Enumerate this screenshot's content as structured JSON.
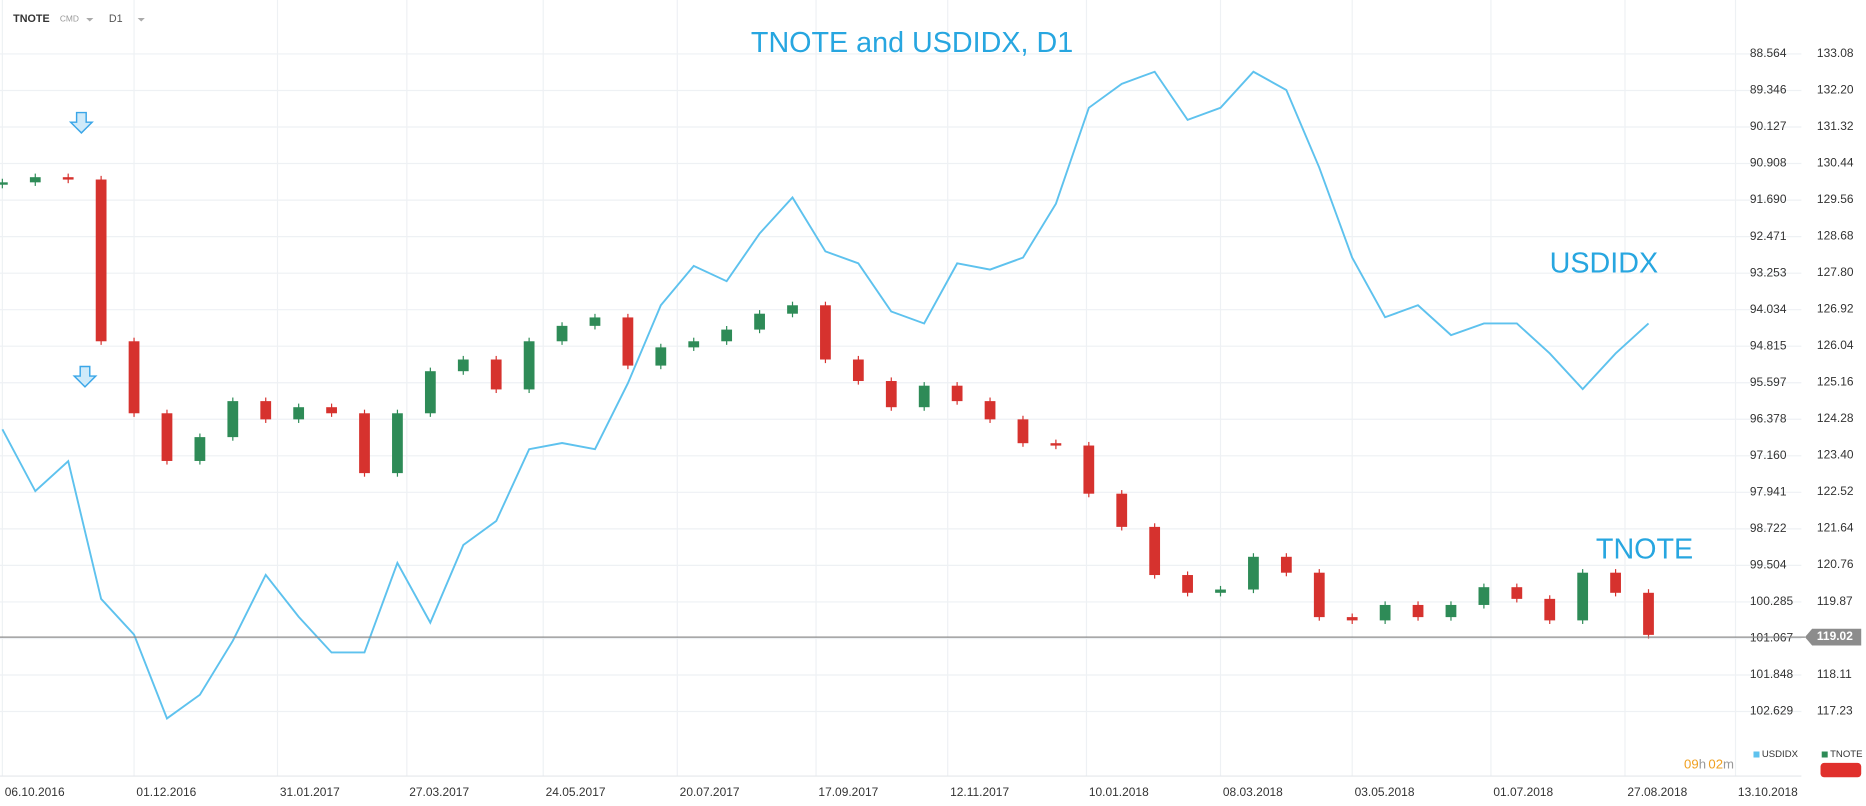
{
  "toolbar": {
    "symbol": "TNOTE",
    "market": "CMD",
    "timeframe": "D1"
  },
  "chart_data": {
    "type": "candlestick",
    "title": "TNOTE and USDIDX, D1",
    "annotations": [
      "USDIDX",
      "TNOTE"
    ],
    "grid": true,
    "x": [
      "06.10.2016",
      "20.10.2016",
      "03.11.2016",
      "17.11.2016",
      "01.12.2016",
      "15.12.2016",
      "29.12.2016",
      "12.01.2017",
      "26.01.2017",
      "09.02.2017",
      "23.02.2017",
      "09.03.2017",
      "23.03.2017",
      "06.04.2017",
      "20.04.2017",
      "04.05.2017",
      "18.05.2017",
      "01.06.2017",
      "15.06.2017",
      "29.06.2017",
      "13.07.2017",
      "27.07.2017",
      "10.08.2017",
      "24.08.2017",
      "07.09.2017",
      "21.09.2017",
      "05.10.2017",
      "19.10.2017",
      "02.11.2017",
      "16.11.2017",
      "30.11.2017",
      "14.12.2017",
      "28.12.2017",
      "11.01.2018",
      "25.01.2018",
      "08.02.2018",
      "22.02.2018",
      "08.03.2018",
      "22.03.2018",
      "05.04.2018",
      "19.04.2018",
      "03.05.2018",
      "17.05.2018",
      "31.05.2018",
      "14.06.2018",
      "28.06.2018",
      "12.07.2018",
      "26.07.2018",
      "09.08.2018",
      "23.08.2018",
      "06.09.2018"
    ],
    "series": [
      {
        "name": "TNOTE",
        "type": "candlestick",
        "color": "#2e8b57",
        "falling_color": "#d6322e",
        "values": [
          91.31,
          91.2,
          91.25,
          94.71,
          96.25,
          97.27,
          96.76,
          95.99,
          96.38,
          96.12,
          96.25,
          97.53,
          96.25,
          95.35,
          95.1,
          95.74,
          94.71,
          94.38,
          94.2,
          95.23,
          94.84,
          94.71,
          94.46,
          94.12,
          93.94,
          95.1,
          95.56,
          96.12,
          95.66,
          95.99,
          96.38,
          96.89,
          96.94,
          97.97,
          98.68,
          99.71,
          100.09,
          100.02,
          99.32,
          99.66,
          100.61,
          100.68,
          100.35,
          100.61,
          100.35,
          99.97,
          100.22,
          100.68,
          99.66,
          100.09,
          100.99
        ]
      },
      {
        "name": "USDIDX",
        "type": "line",
        "axis": "y2",
        "color": "#5ec2ee",
        "values": [
          124.03,
          122.54,
          123.26,
          119.94,
          119.08,
          117.06,
          117.63,
          118.93,
          120.52,
          119.51,
          118.65,
          118.65,
          120.81,
          119.37,
          121.24,
          121.82,
          123.55,
          123.7,
          123.55,
          125.14,
          127.02,
          127.97,
          127.6,
          128.75,
          129.62,
          128.32,
          128.03,
          126.87,
          126.58,
          128.03,
          127.88,
          128.17,
          129.47,
          131.78,
          132.36,
          132.65,
          131.49,
          131.78,
          132.65,
          132.21,
          130.34,
          128.17,
          126.73,
          127.02,
          126.3,
          126.58,
          126.58,
          125.86,
          125,
          125.86,
          126.58
        ]
      }
    ],
    "xlim": [
      "05.10.2016",
      "10.11.2018"
    ],
    "xticks": [
      "06.10.2016",
      "01.12.2016",
      "31.01.2017",
      "27.03.2017",
      "24.05.2017",
      "20.07.2017",
      "17.09.2017",
      "12.11.2017",
      "10.01.2018",
      "08.03.2018",
      "03.05.2018",
      "01.07.2018",
      "27.08.2018",
      "13.10.2018"
    ],
    "ylim": [
      104.01,
      87.41
    ],
    "yticks": [
      88.564,
      89.346,
      90.127,
      90.908,
      {
        "value": 91.69,
        "label": "91.690"
      },
      92.471,
      93.253,
      94.034,
      94.815,
      95.597,
      96.378,
      {
        "value": 97.16,
        "label": "97.160"
      },
      97.941,
      98.722,
      99.504,
      100.285,
      101.067,
      101.848,
      102.629
    ],
    "y2lim": [
      115.67,
      134.38
    ],
    "y2ticks": [
      133.08,
      {
        "value": 132.2,
        "label": "132.20"
      },
      131.32,
      130.44,
      129.56,
      128.68,
      {
        "value": 127.8,
        "label": "127.80"
      },
      126.92,
      126.04,
      125.16,
      124.28,
      {
        "value": 123.4,
        "label": "123.40"
      },
      122.52,
      121.64,
      120.76,
      119.87,
      118.11,
      117.23
    ],
    "current_price": 119.02,
    "countdown": [
      "09",
      "h",
      "02",
      "m"
    ]
  }
}
